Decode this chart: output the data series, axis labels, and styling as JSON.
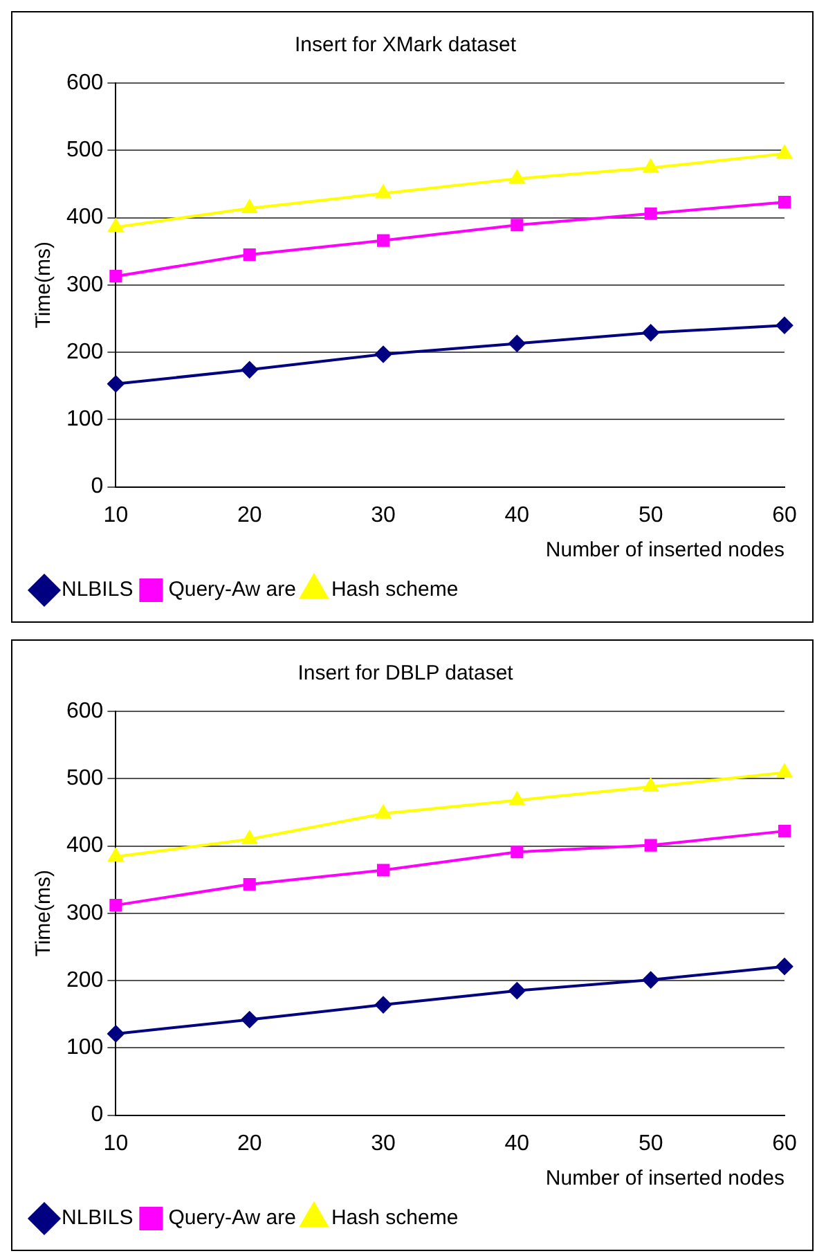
{
  "chart_data": [
    {
      "type": "line",
      "title": "Insert for XMark dataset",
      "xlabel": "Number of inserted nodes",
      "ylabel": "Time(ms)",
      "categories": [
        "10",
        "20",
        "30",
        "40",
        "50",
        "60"
      ],
      "ylim": [
        0,
        600
      ],
      "yticks": [
        0,
        100,
        200,
        300,
        400,
        500,
        600
      ],
      "grid": "y",
      "legend": "bottom left",
      "series": [
        {
          "name": "NLBILS",
          "color": "#000080",
          "marker": "diamond",
          "values": [
            153,
            174,
            197,
            213,
            229,
            240
          ]
        },
        {
          "name": "Query-Aw are",
          "color": "#ff00ff",
          "marker": "square",
          "values": [
            313,
            345,
            366,
            389,
            406,
            423
          ]
        },
        {
          "name": "Hash scheme",
          "color": "#ffff00",
          "marker": "triangle",
          "values": [
            386,
            414,
            436,
            458,
            474,
            495
          ]
        }
      ]
    },
    {
      "type": "line",
      "title": "Insert for DBLP dataset",
      "xlabel": "Number of inserted nodes",
      "ylabel": "Time(ms)",
      "categories": [
        "10",
        "20",
        "30",
        "40",
        "50",
        "60"
      ],
      "ylim": [
        0,
        600
      ],
      "yticks": [
        0,
        100,
        200,
        300,
        400,
        500,
        600
      ],
      "grid": "y",
      "legend": "bottom left",
      "series": [
        {
          "name": "NLBILS",
          "color": "#000080",
          "marker": "diamond",
          "values": [
            121,
            142,
            164,
            185,
            201,
            221
          ]
        },
        {
          "name": "Query-Aw are",
          "color": "#ff00ff",
          "marker": "square",
          "values": [
            312,
            343,
            364,
            391,
            401,
            422
          ]
        },
        {
          "name": "Hash scheme",
          "color": "#ffff00",
          "marker": "triangle",
          "values": [
            384,
            410,
            448,
            468,
            488,
            509
          ]
        }
      ]
    }
  ]
}
